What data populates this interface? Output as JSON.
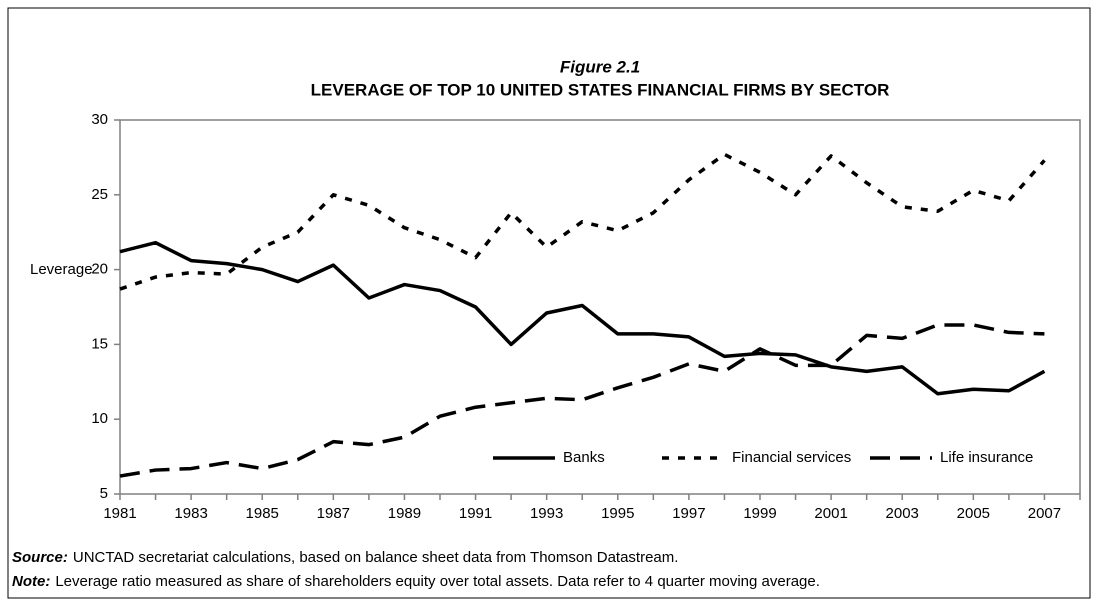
{
  "chart_data": {
    "type": "line",
    "title": "Figure 2.1",
    "subtitle": "LEVERAGE OF TOP 10 UNITED STATES FINANCIAL FIRMS BY SECTOR",
    "y_label": "Leverage",
    "x": [
      1981,
      1982,
      1983,
      1984,
      1985,
      1986,
      1987,
      1988,
      1989,
      1990,
      1991,
      1992,
      1993,
      1994,
      1995,
      1996,
      1997,
      1998,
      1999,
      2000,
      2001,
      2002,
      2003,
      2004,
      2005,
      2006,
      2007
    ],
    "series": [
      {
        "name": "Banks",
        "color": "#000000",
        "style": "solid",
        "values": [
          21.2,
          21.8,
          20.6,
          20.4,
          20.0,
          19.2,
          20.3,
          18.1,
          19.0,
          18.6,
          17.5,
          15.0,
          17.1,
          17.6,
          15.7,
          15.7,
          15.5,
          14.2,
          14.4,
          14.3,
          13.5,
          13.2,
          13.5,
          11.7,
          12.0,
          11.9,
          13.2
        ]
      },
      {
        "name": "Financial services",
        "color": "#000000",
        "style": "dotted",
        "values": [
          18.7,
          19.5,
          19.8,
          19.7,
          21.5,
          22.5,
          25.0,
          24.3,
          22.8,
          22.0,
          20.8,
          23.8,
          21.5,
          23.2,
          22.6,
          23.8,
          26.0,
          27.7,
          26.5,
          25.0,
          27.6,
          25.8,
          24.2,
          23.9,
          25.3,
          24.6,
          27.3
        ]
      },
      {
        "name": "Life insurance",
        "color": "#000000",
        "style": "dashed",
        "values": [
          6.2,
          6.6,
          6.7,
          7.1,
          6.7,
          7.3,
          8.5,
          8.3,
          8.8,
          10.2,
          10.8,
          11.1,
          11.4,
          11.3,
          12.1,
          12.8,
          13.7,
          13.2,
          14.7,
          13.6,
          13.6,
          15.6,
          15.4,
          16.3,
          16.3,
          15.8,
          15.7
        ]
      }
    ],
    "xlim": [
      1981,
      2008
    ],
    "xticks": [
      1981,
      1983,
      1985,
      1987,
      1989,
      1991,
      1993,
      1995,
      1997,
      1999,
      2001,
      2003,
      2005,
      2007
    ],
    "ylim": [
      5,
      30
    ],
    "yticks": [
      5,
      10,
      15,
      20,
      25,
      30
    ],
    "grid": false,
    "legend": "lower right",
    "source_label": "Source:",
    "source": "UNCTAD secretariat calculations, based on balance sheet data from Thomson Datastream.",
    "note_label": "Note:",
    "note": "Leverage ratio measured as share of shareholders equity over total assets. Data refer to 4 quarter moving average."
  }
}
